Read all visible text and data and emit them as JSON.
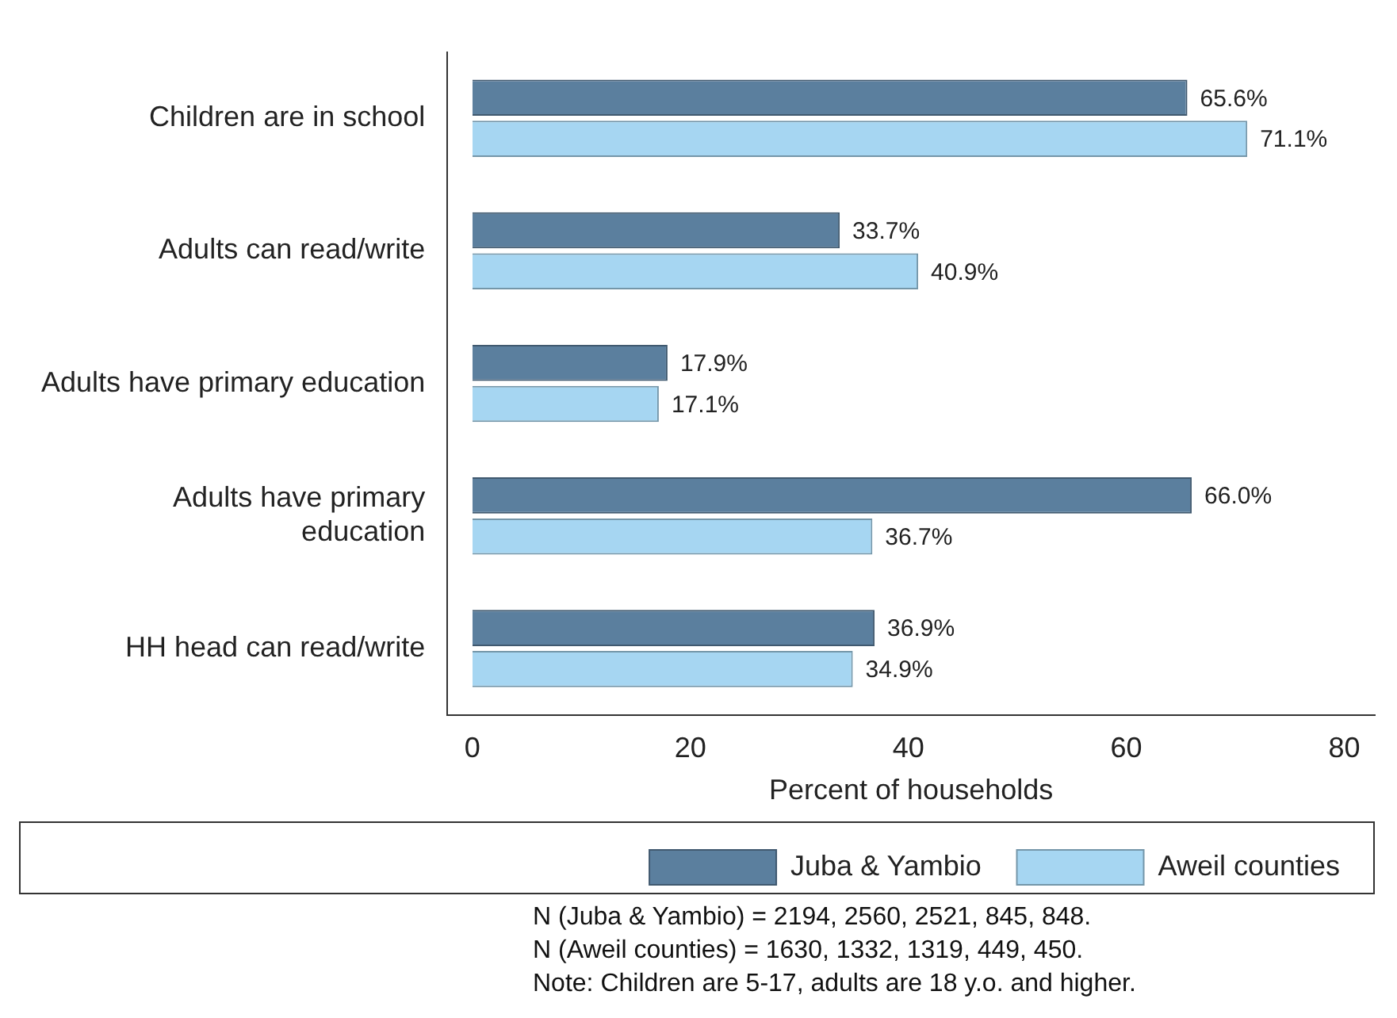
{
  "chart_data": {
    "type": "bar",
    "orientation": "horizontal",
    "categories": [
      "Children are in school",
      "Adults can read/write",
      "Adults have primary education",
      "Adults have primary\neducation",
      "HH head can read/write"
    ],
    "series": [
      {
        "name": "Juba & Yambio",
        "color": "#5b7f9e",
        "values": [
          65.6,
          33.7,
          17.9,
          66.0,
          36.9
        ],
        "value_labels": [
          "65.6%",
          "33.7%",
          "17.9%",
          "66.0%",
          "36.9%"
        ]
      },
      {
        "name": "Aweil counties",
        "color": "#a6d6f2",
        "values": [
          71.1,
          40.9,
          17.1,
          36.7,
          34.9
        ],
        "value_labels": [
          "71.1%",
          "40.9%",
          "17.1%",
          "36.7%",
          "34.9%"
        ]
      }
    ],
    "xlabel": "Percent of households",
    "xlim": [
      -2.3,
      82.8
    ],
    "xticks": [
      0,
      20,
      40,
      60,
      80
    ],
    "grid": false,
    "legend": "bottom",
    "annotations": [
      "N (Juba & Yambio) = 2194, 2560, 2521, 845, 848.",
      "N (Aweil counties) = 1630, 1332, 1319, 449, 450.",
      "Note: Children are 5-17, adults are 18 y.o. and higher."
    ]
  }
}
